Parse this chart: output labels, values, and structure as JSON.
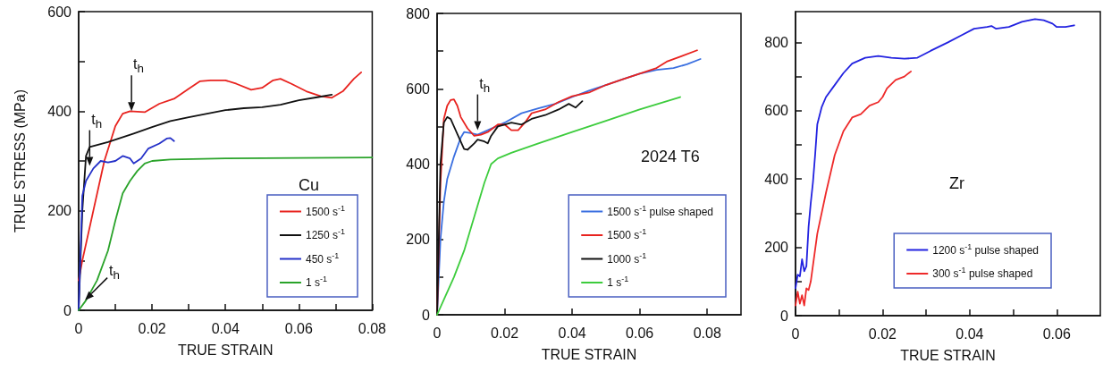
{
  "chart_data": [
    {
      "type": "line",
      "xlabel": "TRUE STRAIN",
      "ylabel": "TRUE STRESS (MPa)",
      "xlim": [
        0,
        0.08
      ],
      "ylim": [
        0,
        600
      ],
      "xticks": [
        0,
        {
          "value": 0.01,
          "label": null
        },
        0.02,
        {
          "value": 0.03,
          "label": null
        },
        0.04,
        {
          "value": 0.05,
          "label": null
        },
        0.06,
        {
          "value": 0.07,
          "label": null
        },
        0.08
      ],
      "yticks": [
        0,
        {
          "value": 100,
          "label": null
        },
        200,
        {
          "value": 300,
          "label": null
        },
        400,
        {
          "value": 500,
          "label": null
        },
        600
      ],
      "legend": "bottom right",
      "marker": "none",
      "line_style": "solid",
      "annotations": [
        "Cu",
        {
          "text": "t$_{h}$",
          "x": 0.0144,
          "y": 400
        },
        {
          "text": "t$_{h}$",
          "x": 0.003,
          "y": 290
        },
        {
          "text": "t$_{h}$",
          "x": 0.001,
          "y": 15
        }
      ],
      "series": [
        {
          "name": "1500 s$^{-1}$",
          "color": "#e8231f",
          "x": [
            0,
            0.001,
            0.004,
            0.007,
            0.01,
            0.012,
            0.014,
            0.018,
            0.022,
            0.026,
            0.03,
            0.033,
            0.036,
            0.04,
            0.043,
            0.047,
            0.05,
            0.053,
            0.055,
            0.058,
            0.062,
            0.066,
            0.069,
            0.072,
            0.075,
            0.077
          ],
          "values": [
            60,
            100,
            200,
            300,
            370,
            395,
            400,
            398,
            415,
            425,
            445,
            460,
            462,
            462,
            455,
            443,
            447,
            462,
            465,
            455,
            440,
            430,
            427,
            440,
            465,
            478
          ]
        },
        {
          "name": "1250 s$^{-1}$",
          "color": "#111111",
          "x": [
            0,
            0.001,
            0.002,
            0.003,
            0.008,
            0.015,
            0.02,
            0.025,
            0.03,
            0.035,
            0.04,
            0.045,
            0.05,
            0.055,
            0.06,
            0.065,
            0.069
          ],
          "values": [
            0,
            200,
            310,
            328,
            338,
            355,
            368,
            380,
            388,
            395,
            402,
            406,
            408,
            413,
            422,
            428,
            433
          ]
        },
        {
          "name": "450 s$^{-1}$",
          "color": "#2430c8",
          "x": [
            0,
            0.001,
            0.002,
            0.004,
            0.006,
            0.008,
            0.01,
            0.012,
            0.014,
            0.015,
            0.017,
            0.019,
            0.022,
            0.024,
            0.025,
            0.026
          ],
          "values": [
            0,
            230,
            260,
            285,
            300,
            297,
            300,
            310,
            305,
            295,
            305,
            325,
            335,
            345,
            346,
            340
          ]
        },
        {
          "name": "1 s$^{-1}$",
          "color": "#2aa32a",
          "x": [
            0,
            0.002,
            0.005,
            0.008,
            0.01,
            0.012,
            0.014,
            0.016,
            0.018,
            0.02,
            0.025,
            0.04,
            0.06,
            0.08
          ],
          "values": [
            0,
            20,
            60,
            120,
            180,
            235,
            260,
            280,
            295,
            300,
            303,
            305,
            306,
            307
          ]
        }
      ]
    },
    {
      "type": "line",
      "xlabel": "TRUE STRAIN",
      "xlim": [
        0,
        0.09
      ],
      "ylim": [
        0,
        800
      ],
      "xticks": [
        0,
        0.02,
        0.04,
        0.06,
        0.08
      ],
      "yticks": [
        0,
        {
          "value": 100,
          "label": null
        },
        200,
        {
          "value": 300,
          "label": null
        },
        400,
        {
          "value": 500,
          "label": null
        },
        600,
        {
          "value": 700,
          "label": null
        },
        800
      ],
      "legend": "bottom right",
      "marker": "none",
      "line_style": "solid",
      "annotations": [
        "2024 T6",
        {
          "text": "t$_{h}$",
          "x": 0.012,
          "y": 490
        }
      ],
      "series": [
        {
          "name": "1500 s$^{-1}$ pulse shaped",
          "color": "#3a6fe0",
          "x": [
            0,
            0.001,
            0.002,
            0.003,
            0.005,
            0.007,
            0.008,
            0.01,
            0.012,
            0.015,
            0.02,
            0.025,
            0.03,
            0.035,
            0.04,
            0.045,
            0.05,
            0.055,
            0.06,
            0.065,
            0.07,
            0.074,
            0.078
          ],
          "values": [
            0,
            200,
            300,
            360,
            420,
            470,
            485,
            482,
            478,
            490,
            510,
            535,
            548,
            560,
            578,
            595,
            610,
            625,
            640,
            650,
            655,
            665,
            679
          ]
        },
        {
          "name": "1500 s$^{-1}$",
          "color": "#e8231f",
          "x": [
            0,
            0.001,
            0.002,
            0.003,
            0.004,
            0.005,
            0.006,
            0.007,
            0.009,
            0.011,
            0.013,
            0.015,
            0.018,
            0.02,
            0.022,
            0.024,
            0.026,
            0.028,
            0.032,
            0.036,
            0.04,
            0.045,
            0.05,
            0.055,
            0.06,
            0.065,
            0.068,
            0.072,
            0.077
          ],
          "values": [
            0,
            350,
            520,
            555,
            570,
            572,
            555,
            525,
            495,
            475,
            478,
            485,
            505,
            505,
            490,
            490,
            510,
            535,
            545,
            565,
            580,
            590,
            610,
            625,
            640,
            655,
            672,
            685,
            702
          ]
        },
        {
          "name": "1000 s$^{-1}$",
          "color": "#111111",
          "x": [
            0,
            0.001,
            0.002,
            0.003,
            0.004,
            0.006,
            0.008,
            0.009,
            0.011,
            0.012,
            0.014,
            0.015,
            0.016,
            0.018,
            0.02,
            0.022,
            0.025,
            0.028,
            0.032,
            0.036,
            0.039,
            0.041,
            0.043
          ],
          "values": [
            0,
            400,
            510,
            525,
            520,
            480,
            440,
            438,
            455,
            465,
            460,
            455,
            475,
            500,
            505,
            510,
            505,
            520,
            530,
            545,
            560,
            550,
            567
          ]
        },
        {
          "name": "1 s$^{-1}$",
          "color": "#3dcc3d",
          "x": [
            0,
            0.002,
            0.005,
            0.008,
            0.011,
            0.014,
            0.016,
            0.018,
            0.022,
            0.03,
            0.04,
            0.05,
            0.06,
            0.072
          ],
          "values": [
            0,
            40,
            100,
            170,
            260,
            350,
            400,
            415,
            430,
            455,
            485,
            515,
            545,
            578
          ]
        }
      ]
    },
    {
      "type": "line",
      "xlabel": "TRUE STRAIN",
      "xlim": [
        0,
        0.07
      ],
      "ylim": [
        0,
        890
      ],
      "xticks": [
        0,
        {
          "value": 0.01,
          "label": null
        },
        0.02,
        {
          "value": 0.03,
          "label": null
        },
        0.04,
        {
          "value": 0.05,
          "label": null
        },
        0.06
      ],
      "yticks": [
        0,
        {
          "value": 100,
          "label": null
        },
        200,
        {
          "value": 300,
          "label": null
        },
        400,
        {
          "value": 500,
          "label": null
        },
        600,
        {
          "value": 700,
          "label": null
        },
        800
      ],
      "legend": "bottom right",
      "marker": "none",
      "line_style": "solid",
      "annotations": [
        "Zr"
      ],
      "series": [
        {
          "name": "1200 s$^{-1}$ pulse shaped",
          "color": "#2222e0",
          "x": [
            0,
            0.0005,
            0.001,
            0.0015,
            0.002,
            0.0025,
            0.003,
            0.0035,
            0.004,
            0.0045,
            0.005,
            0.006,
            0.007,
            0.009,
            0.011,
            0.013,
            0.016,
            0.019,
            0.022,
            0.025,
            0.028,
            0.031,
            0.035,
            0.038,
            0.041,
            0.044,
            0.045,
            0.046,
            0.049,
            0.052,
            0.055,
            0.057,
            0.059,
            0.06,
            0.062,
            0.064
          ],
          "values": [
            80,
            120,
            115,
            165,
            130,
            145,
            260,
            330,
            390,
            470,
            560,
            610,
            640,
            675,
            710,
            738,
            755,
            760,
            755,
            752,
            755,
            775,
            800,
            820,
            840,
            845,
            848,
            840,
            845,
            860,
            868,
            865,
            855,
            845,
            845,
            850
          ]
        },
        {
          "name": "300 s$^{-1}$ pulse shaped",
          "color": "#ee2a2a",
          "x": [
            0,
            0.0005,
            0.001,
            0.0015,
            0.002,
            0.0025,
            0.003,
            0.0035,
            0.005,
            0.007,
            0.009,
            0.011,
            0.013,
            0.015,
            0.017,
            0.019,
            0.02,
            0.021,
            0.023,
            0.025,
            0.0265
          ],
          "values": [
            30,
            70,
            35,
            60,
            30,
            80,
            75,
            100,
            240,
            360,
            470,
            540,
            580,
            590,
            615,
            625,
            640,
            665,
            690,
            700,
            715
          ]
        }
      ]
    }
  ]
}
